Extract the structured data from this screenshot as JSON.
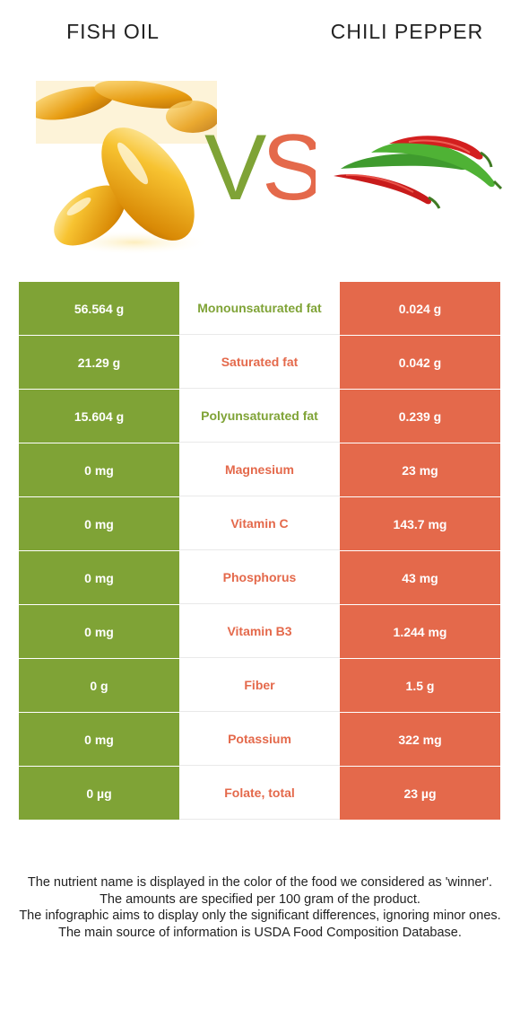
{
  "header": {
    "left_food": "FISH OIL",
    "right_food": "CHILI PEPPER",
    "vs": "VS"
  },
  "colors": {
    "left": "#7fa336",
    "right": "#e4694b"
  },
  "rows": [
    {
      "left": "56.564 g",
      "nutrient": "Monounsaturated fat",
      "right": "0.024 g",
      "winner": "left"
    },
    {
      "left": "21.29 g",
      "nutrient": "Saturated fat",
      "right": "0.042 g",
      "winner": "right"
    },
    {
      "left": "15.604 g",
      "nutrient": "Polyunsaturated fat",
      "right": "0.239 g",
      "winner": "left"
    },
    {
      "left": "0 mg",
      "nutrient": "Magnesium",
      "right": "23 mg",
      "winner": "right"
    },
    {
      "left": "0 mg",
      "nutrient": "Vitamin C",
      "right": "143.7 mg",
      "winner": "right"
    },
    {
      "left": "0 mg",
      "nutrient": "Phosphorus",
      "right": "43 mg",
      "winner": "right"
    },
    {
      "left": "0 mg",
      "nutrient": "Vitamin B3",
      "right": "1.244 mg",
      "winner": "right"
    },
    {
      "left": "0 g",
      "nutrient": "Fiber",
      "right": "1.5 g",
      "winner": "right"
    },
    {
      "left": "0 mg",
      "nutrient": "Potassium",
      "right": "322 mg",
      "winner": "right"
    },
    {
      "left": "0 µg",
      "nutrient": "Folate, total",
      "right": "23 µg",
      "winner": "right"
    }
  ],
  "footer": {
    "line1": "The nutrient name is displayed in the color of the food we considered as 'winner'.",
    "line2": "The amounts are specified per 100 gram of the product.",
    "line3": "The infographic aims to display only the significant differences, ignoring minor ones.",
    "line4": "The main source of information is USDA Food Composition Database."
  }
}
